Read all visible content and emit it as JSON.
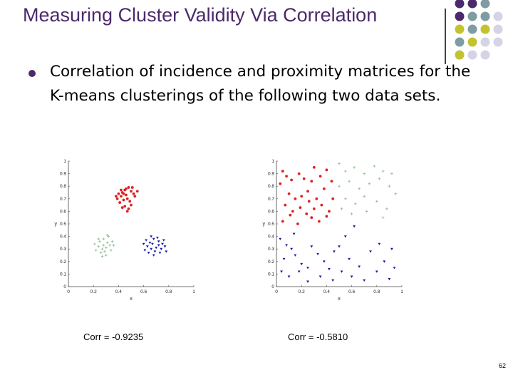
{
  "slide": {
    "title": "Measuring Cluster Validity Via Correlation",
    "bullet": "Correlation of incidence and proximity matrices for the K-means clusterings of the following two data sets.",
    "page_number": "62",
    "colors": {
      "title": "#4b2a6b",
      "purple": "#4b2a6b",
      "teal": "#7f9ca3",
      "olive": "#c2c32f",
      "lavender": "#d4d4e6"
    }
  },
  "chart_data": [
    {
      "type": "scatter",
      "title": "",
      "xlabel": "x",
      "ylabel": "y",
      "xlim": [
        0,
        1
      ],
      "ylim": [
        0,
        1
      ],
      "xticks": [
        "0",
        "0.2",
        "0.4",
        "0.6",
        "0.8",
        "1"
      ],
      "yticks": [
        "0",
        "0.1",
        "0.2",
        "0.3",
        "0.4",
        "0.5",
        "0.6",
        "0.7",
        "0.8",
        "0.9",
        "1"
      ],
      "caption": "Corr = -0.9235",
      "series": [
        {
          "color": "#dd2222",
          "marker": "dot",
          "points": [
            [
              0.43,
              0.75
            ],
            [
              0.45,
              0.77
            ],
            [
              0.48,
              0.79
            ],
            [
              0.4,
              0.74
            ],
            [
              0.42,
              0.72
            ],
            [
              0.46,
              0.73
            ],
            [
              0.5,
              0.76
            ],
            [
              0.52,
              0.74
            ],
            [
              0.44,
              0.69
            ],
            [
              0.47,
              0.7
            ],
            [
              0.41,
              0.67
            ],
            [
              0.49,
              0.68
            ],
            [
              0.53,
              0.72
            ],
            [
              0.39,
              0.7
            ],
            [
              0.45,
              0.64
            ],
            [
              0.48,
              0.62
            ],
            [
              0.43,
              0.63
            ],
            [
              0.5,
              0.65
            ],
            [
              0.46,
              0.78
            ],
            [
              0.51,
              0.79
            ],
            [
              0.42,
              0.77
            ],
            [
              0.38,
              0.72
            ],
            [
              0.55,
              0.76
            ],
            [
              0.47,
              0.6
            ],
            [
              0.44,
              0.74
            ]
          ]
        },
        {
          "color": "#8fbf8f",
          "marker": "plus",
          "points": [
            [
              0.25,
              0.36
            ],
            [
              0.28,
              0.38
            ],
            [
              0.31,
              0.35
            ],
            [
              0.24,
              0.32
            ],
            [
              0.27,
              0.3
            ],
            [
              0.3,
              0.31
            ],
            [
              0.33,
              0.33
            ],
            [
              0.22,
              0.29
            ],
            [
              0.26,
              0.27
            ],
            [
              0.29,
              0.28
            ],
            [
              0.32,
              0.4
            ],
            [
              0.35,
              0.36
            ],
            [
              0.24,
              0.38
            ],
            [
              0.3,
              0.25
            ],
            [
              0.34,
              0.29
            ],
            [
              0.21,
              0.34
            ],
            [
              0.28,
              0.33
            ],
            [
              0.36,
              0.33
            ],
            [
              0.27,
              0.24
            ],
            [
              0.31,
              0.41
            ]
          ]
        },
        {
          "color": "#1a1aa8",
          "marker": "tri",
          "points": [
            [
              0.62,
              0.37
            ],
            [
              0.65,
              0.35
            ],
            [
              0.68,
              0.38
            ],
            [
              0.72,
              0.36
            ],
            [
              0.75,
              0.34
            ],
            [
              0.63,
              0.32
            ],
            [
              0.66,
              0.3
            ],
            [
              0.7,
              0.31
            ],
            [
              0.74,
              0.3
            ],
            [
              0.77,
              0.32
            ],
            [
              0.61,
              0.29
            ],
            [
              0.69,
              0.28
            ],
            [
              0.73,
              0.27
            ],
            [
              0.67,
              0.34
            ],
            [
              0.71,
              0.39
            ],
            [
              0.64,
              0.27
            ],
            [
              0.76,
              0.37
            ],
            [
              0.6,
              0.34
            ],
            [
              0.68,
              0.25
            ],
            [
              0.78,
              0.28
            ],
            [
              0.66,
              0.4
            ],
            [
              0.72,
              0.33
            ]
          ]
        }
      ]
    },
    {
      "type": "scatter",
      "title": "",
      "xlabel": "x",
      "ylabel": "y",
      "xlim": [
        0,
        1
      ],
      "ylim": [
        0,
        1
      ],
      "xticks": [
        "0",
        "0.2",
        "0.4",
        "0.6",
        "0.8",
        "1"
      ],
      "yticks": [
        "0",
        "0.1",
        "0.2",
        "0.3",
        "0.4",
        "0.5",
        "0.6",
        "0.7",
        "0.8",
        "0.9",
        "1"
      ],
      "caption": "Corr = -0.5810",
      "series": [
        {
          "color": "#dd2222",
          "marker": "dot",
          "points": [
            [
              0.05,
              0.92
            ],
            [
              0.08,
              0.88
            ],
            [
              0.12,
              0.85
            ],
            [
              0.03,
              0.82
            ],
            [
              0.18,
              0.9
            ],
            [
              0.22,
              0.86
            ],
            [
              0.3,
              0.95
            ],
            [
              0.28,
              0.84
            ],
            [
              0.35,
              0.88
            ],
            [
              0.4,
              0.93
            ],
            [
              0.1,
              0.74
            ],
            [
              0.15,
              0.7
            ],
            [
              0.2,
              0.72
            ],
            [
              0.25,
              0.76
            ],
            [
              0.32,
              0.7
            ],
            [
              0.38,
              0.78
            ],
            [
              0.07,
              0.65
            ],
            [
              0.13,
              0.6
            ],
            [
              0.19,
              0.63
            ],
            [
              0.24,
              0.58
            ],
            [
              0.3,
              0.62
            ],
            [
              0.36,
              0.65
            ],
            [
              0.42,
              0.6
            ],
            [
              0.05,
              0.52
            ],
            [
              0.17,
              0.5
            ],
            [
              0.28,
              0.55
            ],
            [
              0.34,
              0.52
            ],
            [
              0.4,
              0.56
            ],
            [
              0.45,
              0.7
            ],
            [
              0.44,
              0.84
            ],
            [
              0.11,
              0.57
            ],
            [
              0.26,
              0.68
            ]
          ]
        },
        {
          "color": "#8fbf8f",
          "marker": "plus",
          "points": [
            [
              0.5,
              0.98
            ],
            [
              0.55,
              0.92
            ],
            [
              0.62,
              0.95
            ],
            [
              0.7,
              0.9
            ],
            [
              0.78,
              0.96
            ],
            [
              0.85,
              0.92
            ],
            [
              0.5,
              0.8
            ],
            [
              0.58,
              0.84
            ],
            [
              0.66,
              0.78
            ],
            [
              0.74,
              0.82
            ],
            [
              0.82,
              0.86
            ],
            [
              0.9,
              0.8
            ],
            [
              0.95,
              0.74
            ],
            [
              0.55,
              0.7
            ],
            [
              0.63,
              0.66
            ],
            [
              0.7,
              0.72
            ],
            [
              0.8,
              0.68
            ],
            [
              0.88,
              0.62
            ],
            [
              0.6,
              0.58
            ],
            [
              0.72,
              0.6
            ],
            [
              0.85,
              0.55
            ],
            [
              0.92,
              0.9
            ],
            [
              0.52,
              0.62
            ]
          ]
        },
        {
          "color": "#1a1aa8",
          "marker": "tri",
          "points": [
            [
              0.03,
              0.38
            ],
            [
              0.08,
              0.33
            ],
            [
              0.12,
              0.3
            ],
            [
              0.06,
              0.22
            ],
            [
              0.15,
              0.25
            ],
            [
              0.2,
              0.18
            ],
            [
              0.04,
              0.12
            ],
            [
              0.1,
              0.08
            ],
            [
              0.18,
              0.12
            ],
            [
              0.25,
              0.15
            ],
            [
              0.28,
              0.32
            ],
            [
              0.33,
              0.26
            ],
            [
              0.38,
              0.2
            ],
            [
              0.42,
              0.14
            ],
            [
              0.46,
              0.28
            ],
            [
              0.5,
              0.32
            ],
            [
              0.35,
              0.08
            ],
            [
              0.45,
              0.05
            ],
            [
              0.52,
              0.12
            ],
            [
              0.58,
              0.22
            ],
            [
              0.6,
              0.08
            ],
            [
              0.66,
              0.16
            ],
            [
              0.7,
              0.05
            ],
            [
              0.75,
              0.28
            ],
            [
              0.8,
              0.12
            ],
            [
              0.86,
              0.2
            ],
            [
              0.9,
              0.06
            ],
            [
              0.94,
              0.15
            ],
            [
              0.55,
              0.4
            ],
            [
              0.82,
              0.34
            ],
            [
              0.25,
              0.04
            ],
            [
              0.14,
              0.42
            ],
            [
              0.62,
              0.48
            ],
            [
              0.92,
              0.3
            ]
          ]
        }
      ]
    }
  ]
}
